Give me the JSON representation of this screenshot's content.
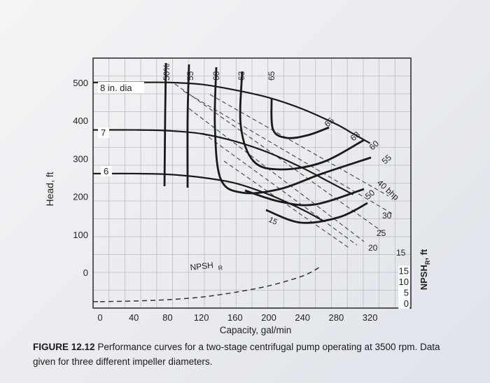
{
  "chart_data": {
    "type": "line",
    "title": "",
    "xlabel": "Capacity, gal/min",
    "ylabel": "Head, ft",
    "ylabel_right": "NPSH",
    "ylabel_right_sub": "R",
    "ylabel_right_unit": ", ft",
    "xlim": [
      0,
      360
    ],
    "ylim": [
      -60,
      560
    ],
    "x_ticks": [
      0,
      40,
      80,
      120,
      160,
      200,
      240,
      280,
      320
    ],
    "y_ticks": [
      0,
      100,
      200,
      300,
      400,
      500
    ],
    "y2_ticks": [
      "15",
      "10",
      "5",
      "0"
    ],
    "y2_values": [
      15,
      10,
      5,
      0
    ],
    "grid": true,
    "series": [
      {
        "name": "8 in. dia",
        "x": [
          0,
          40,
          80,
          120,
          160,
          200,
          240,
          280,
          300,
          320
        ],
        "y": [
          500,
          500,
          500,
          495,
          480,
          460,
          430,
          390,
          365,
          340
        ]
      },
      {
        "name": "7",
        "x": [
          0,
          40,
          80,
          120,
          160,
          200,
          240,
          270,
          300
        ],
        "y": [
          375,
          375,
          373,
          365,
          345,
          315,
          275,
          240,
          205
        ]
      },
      {
        "name": "6",
        "x": [
          0,
          40,
          80,
          120,
          160,
          200,
          240,
          265
        ],
        "y": [
          260,
          260,
          258,
          250,
          235,
          205,
          165,
          135
        ]
      },
      {
        "name": "NPSH",
        "x": [
          0,
          40,
          80,
          120,
          160,
          200,
          240,
          260
        ],
        "y": [
          0.7,
          1.0,
          1.6,
          2.8,
          5.0,
          8.0,
          12.5,
          16.5
        ]
      }
    ],
    "labels": {
      "dia_8": "8 in. dia",
      "dia_7": "7",
      "dia_6": "6",
      "npsh_curve": "NPSH",
      "npsh_sub": "R",
      "eff_top": [
        "50%",
        "55",
        "60",
        "63",
        "65"
      ],
      "eff_right": [
        "65",
        "63",
        "60",
        "55"
      ],
      "bhp": [
        "40 bhp",
        "50",
        "30",
        "25",
        "20",
        "15"
      ]
    }
  },
  "caption": {
    "figure": "FIGURE 12.12",
    "text": "Performance curves for a two-stage centrifugal pump operating at 3500 rpm. Data given for three different impeller diameters."
  }
}
